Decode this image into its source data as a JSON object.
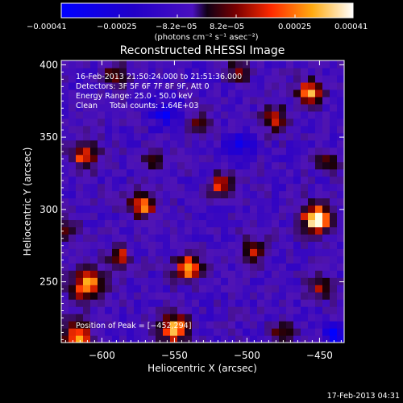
{
  "chart_data": {
    "type": "heatmap",
    "title": "Reconstructed RHESSI Image",
    "xlabel": "Heliocentric X (arcsec)",
    "ylabel": "Heliocentric Y (arcsec)",
    "xlim": [
      -628,
      -433
    ],
    "ylim": [
      208,
      403
    ],
    "xticks": [
      -600,
      -550,
      -500,
      -450
    ],
    "yticks": [
      250,
      300,
      350,
      400
    ],
    "xtick_labels": [
      "−600",
      "−550",
      "−500",
      "−450"
    ],
    "ytick_labels": [
      "250",
      "300",
      "350",
      "400"
    ],
    "colorbar": {
      "min": -0.00041,
      "max": 0.00041,
      "tick_labels": [
        "−0.00041",
        "−0.00025",
        "−8.2e−05",
        "8.2e−05",
        "0.00025",
        "0.00041"
      ],
      "units": "(photons cm⁻² s⁻¹ asec⁻²)"
    },
    "info_lines": [
      "16-Feb-2013 21:50:24.000 to 21:51:36.000",
      "Detectors: 3F 5F 6F 7F 8F 9F, Att 0",
      "Energy Range: 25.0 - 50.0 keV",
      "Clean     Total counts: 1.64E+03"
    ],
    "peak_label": "Position of Peak = [−452,294]",
    "peak": [
      -452,
      294
    ],
    "blobs": [
      {
        "x": -452,
        "y": 294,
        "a": 1.0,
        "r": 10
      },
      {
        "x": -457,
        "y": 381,
        "a": 0.9,
        "r": 8
      },
      {
        "x": -610,
        "y": 248,
        "a": 0.85,
        "r": 11
      },
      {
        "x": -540,
        "y": 260,
        "a": 0.85,
        "r": 9
      },
      {
        "x": -550,
        "y": 218,
        "a": 0.8,
        "r": 10
      },
      {
        "x": -572,
        "y": 304,
        "a": 0.8,
        "r": 9
      },
      {
        "x": -612,
        "y": 338,
        "a": 0.7,
        "r": 9
      },
      {
        "x": -617,
        "y": 212,
        "a": 0.8,
        "r": 10
      },
      {
        "x": -588,
        "y": 268,
        "a": 0.6,
        "r": 7
      },
      {
        "x": -518,
        "y": 317,
        "a": 0.6,
        "r": 8
      },
      {
        "x": -496,
        "y": 272,
        "a": 0.5,
        "r": 9
      },
      {
        "x": -480,
        "y": 363,
        "a": 0.55,
        "r": 9
      },
      {
        "x": -450,
        "y": 247,
        "a": 0.5,
        "r": 8
      },
      {
        "x": -475,
        "y": 215,
        "a": 0.5,
        "r": 8
      },
      {
        "x": -590,
        "y": 393,
        "a": 0.55,
        "r": 8
      },
      {
        "x": -505,
        "y": 396,
        "a": 0.5,
        "r": 8
      },
      {
        "x": -533,
        "y": 360,
        "a": 0.4,
        "r": 7
      },
      {
        "x": -625,
        "y": 286,
        "a": 0.5,
        "r": 7
      },
      {
        "x": -565,
        "y": 333,
        "a": 0.45,
        "r": 7
      },
      {
        "x": -445,
        "y": 333,
        "a": 0.5,
        "r": 7
      }
    ],
    "cold_spots": [
      {
        "x": -440,
        "y": 214,
        "a": 0.9,
        "r": 6
      },
      {
        "x": -555,
        "y": 367,
        "a": 0.5,
        "r": 10
      },
      {
        "x": -505,
        "y": 345,
        "a": 0.5,
        "r": 9
      }
    ]
  },
  "footer_date": "17-Feb-2013 04:31"
}
